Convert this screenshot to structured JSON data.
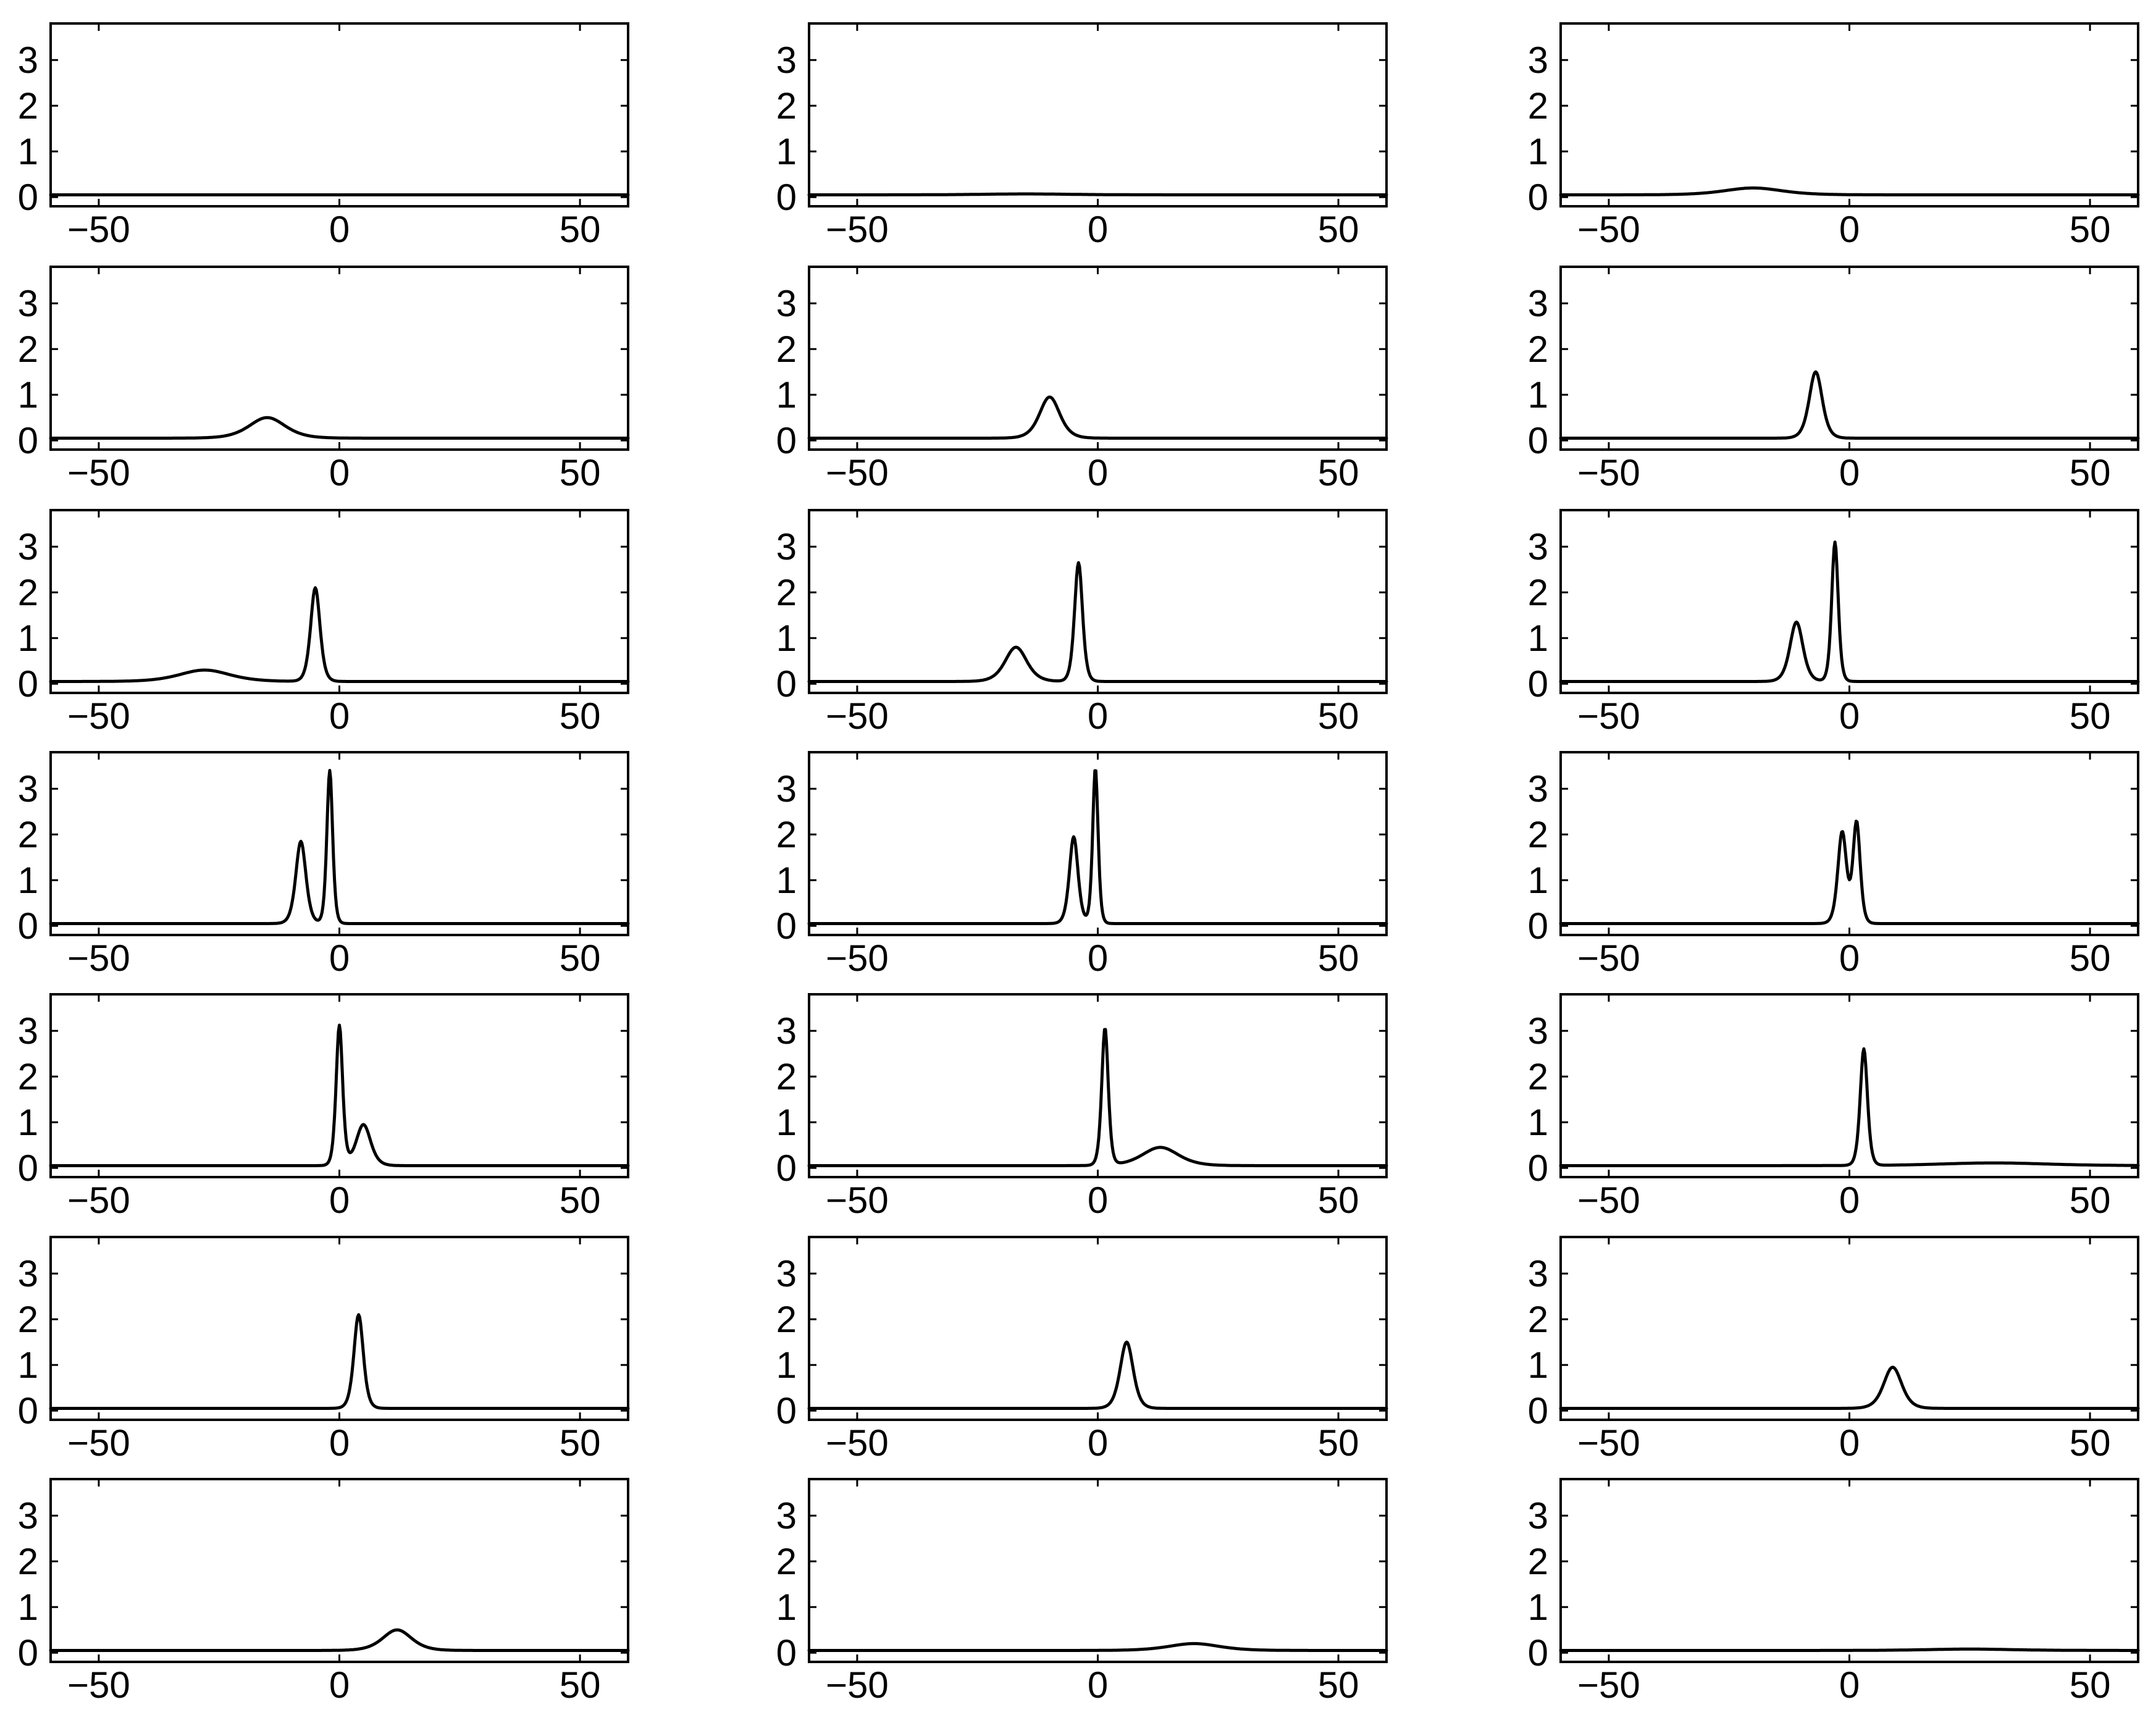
{
  "chart_data": {
    "type": "line",
    "layout": {
      "rows": 7,
      "cols": 3
    },
    "colors": {
      "line": "#000000",
      "axes": "#000000",
      "background": "#ffffff"
    },
    "shared_axes": {
      "xlim": [
        -60,
        60
      ],
      "ylim": [
        -0.2,
        3.8
      ],
      "x_ticks": [
        -50,
        0,
        50
      ],
      "x_tick_labels": [
        "−50",
        "0",
        "50"
      ],
      "y_ticks": [
        0,
        1,
        2,
        3
      ],
      "y_tick_labels": [
        "0",
        "1",
        "2",
        "3"
      ],
      "grid": false,
      "legend": "none"
    },
    "title": "",
    "xlabel": "",
    "ylabel": "",
    "panels": [
      {
        "name": "row1-col1",
        "baseline": 0.05,
        "peaks": []
      },
      {
        "name": "row1-col2",
        "baseline": 0.05,
        "peaks": [
          {
            "x": -15,
            "height": 0.02,
            "width": 12
          }
        ]
      },
      {
        "name": "row1-col3",
        "baseline": 0.05,
        "peaks": [
          {
            "x": -20,
            "height": 0.15,
            "width": 8
          }
        ]
      },
      {
        "name": "row2-col1",
        "baseline": 0.05,
        "peaks": [
          {
            "x": -15,
            "height": 0.45,
            "width": 5
          }
        ]
      },
      {
        "name": "row2-col2",
        "baseline": 0.05,
        "peaks": [
          {
            "x": -10,
            "height": 0.9,
            "width": 2.8
          }
        ]
      },
      {
        "name": "row2-col3",
        "baseline": 0.05,
        "peaks": [
          {
            "x": -7,
            "height": 1.45,
            "width": 1.8
          }
        ]
      },
      {
        "name": "row3-col1",
        "baseline": 0.05,
        "peaks": [
          {
            "x": -28,
            "height": 0.25,
            "width": 7
          },
          {
            "x": -5,
            "height": 2.05,
            "width": 1.3
          }
        ]
      },
      {
        "name": "row3-col2",
        "baseline": 0.05,
        "peaks": [
          {
            "x": -17,
            "height": 0.75,
            "width": 3
          },
          {
            "x": -4,
            "height": 2.6,
            "width": 1.1
          }
        ]
      },
      {
        "name": "row3-col3",
        "baseline": 0.05,
        "peaks": [
          {
            "x": -11,
            "height": 1.3,
            "width": 1.8
          },
          {
            "x": -3,
            "height": 3.05,
            "width": 0.9
          }
        ]
      },
      {
        "name": "row4-col1",
        "baseline": 0.05,
        "peaks": [
          {
            "x": -8,
            "height": 1.8,
            "width": 1.4
          },
          {
            "x": -2,
            "height": 3.35,
            "width": 0.8
          }
        ]
      },
      {
        "name": "row4-col2",
        "baseline": 0.05,
        "peaks": [
          {
            "x": -5,
            "height": 1.9,
            "width": 1.2
          },
          {
            "x": -0.5,
            "height": 3.4,
            "width": 0.75
          }
        ]
      },
      {
        "name": "row4-col3",
        "baseline": 0.05,
        "peaks": [
          {
            "x": -1.5,
            "height": 2.0,
            "width": 1.2
          },
          {
            "x": 1.5,
            "height": 2.2,
            "width": 1.0
          }
        ]
      },
      {
        "name": "row5-col1",
        "baseline": 0.05,
        "peaks": [
          {
            "x": 0,
            "height": 3.05,
            "width": 0.9
          },
          {
            "x": 5,
            "height": 0.9,
            "width": 2
          }
        ]
      },
      {
        "name": "row5-col2",
        "baseline": 0.05,
        "peaks": [
          {
            "x": 1.5,
            "height": 3.0,
            "width": 0.9
          },
          {
            "x": 13,
            "height": 0.4,
            "width": 5
          }
        ]
      },
      {
        "name": "row5-col3",
        "baseline": 0.05,
        "peaks": [
          {
            "x": 3,
            "height": 2.55,
            "width": 1.0
          },
          {
            "x": 30,
            "height": 0.06,
            "width": 15
          }
        ]
      },
      {
        "name": "row6-col1",
        "baseline": 0.05,
        "peaks": [
          {
            "x": 4,
            "height": 2.05,
            "width": 1.3
          }
        ]
      },
      {
        "name": "row6-col2",
        "baseline": 0.05,
        "peaks": [
          {
            "x": 6,
            "height": 1.45,
            "width": 1.8
          }
        ]
      },
      {
        "name": "row6-col3",
        "baseline": 0.05,
        "peaks": [
          {
            "x": 9,
            "height": 0.9,
            "width": 2.5
          }
        ]
      },
      {
        "name": "row7-col1",
        "baseline": 0.05,
        "peaks": [
          {
            "x": 12,
            "height": 0.45,
            "width": 4
          }
        ]
      },
      {
        "name": "row7-col2",
        "baseline": 0.05,
        "peaks": [
          {
            "x": 20,
            "height": 0.15,
            "width": 7
          }
        ]
      },
      {
        "name": "row7-col3",
        "baseline": 0.05,
        "peaks": [
          {
            "x": 25,
            "height": 0.03,
            "width": 12
          }
        ]
      }
    ]
  }
}
